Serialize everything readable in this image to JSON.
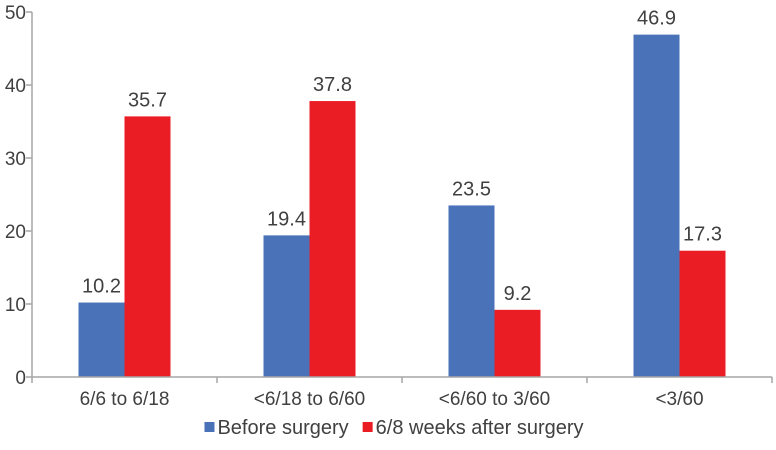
{
  "chart_data": {
    "type": "bar",
    "title": "",
    "xlabel": "",
    "ylabel": "",
    "ylim": [
      0,
      50
    ],
    "yticks": [
      0,
      10,
      20,
      30,
      40,
      50
    ],
    "grid": false,
    "legend_position": "bottom",
    "categories": [
      "6/6 to 6/18",
      "<6/18 to 6/60",
      "<6/60 to 3/60",
      "<3/60"
    ],
    "series": [
      {
        "name": "Before surgery",
        "color": "#4a72b8",
        "values": [
          10.2,
          19.4,
          23.5,
          46.9
        ]
      },
      {
        "name": "6/8 weeks after surgery",
        "color": "#ea1c24",
        "values": [
          35.7,
          37.8,
          9.2,
          17.3
        ]
      }
    ]
  }
}
